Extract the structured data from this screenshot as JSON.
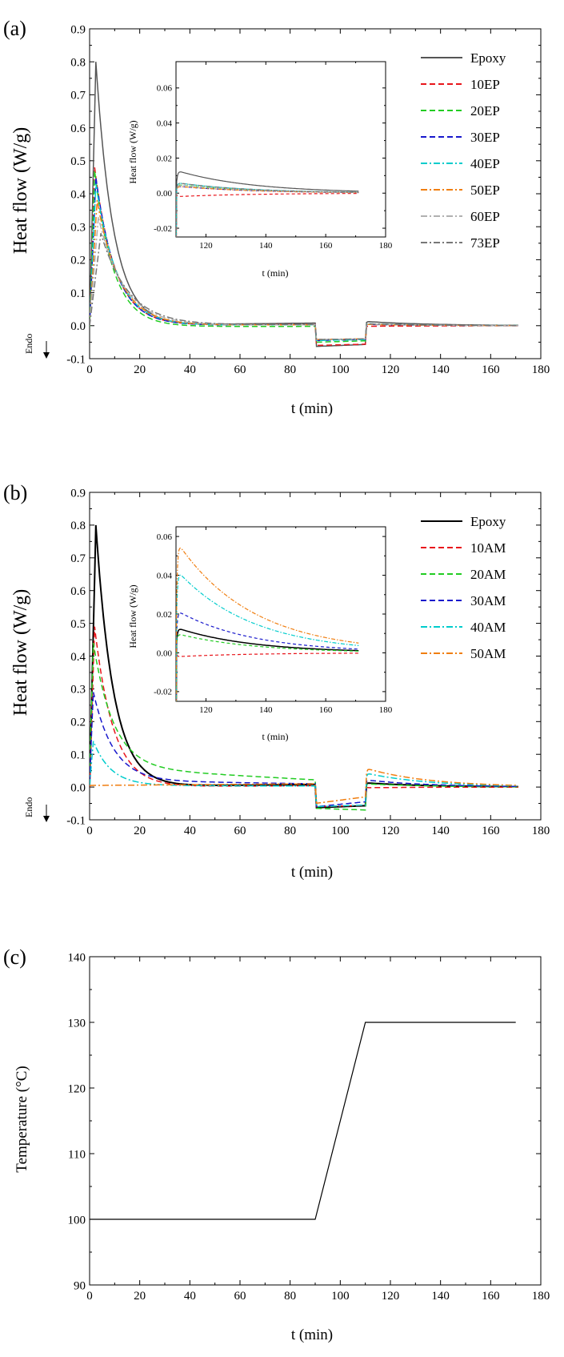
{
  "panels": [
    {
      "label": "(a)",
      "xlabel": "t (min)",
      "ylabel": "Heat flow (W/g)",
      "endo_label": "Endo",
      "inset": {
        "xlabel": "t (min)",
        "ylabel": "Heat flow (W/g)"
      }
    },
    {
      "label": "(b)",
      "xlabel": "t (min)",
      "ylabel": "Heat flow (W/g)",
      "endo_label": "Endo",
      "inset": {
        "xlabel": "t (min)",
        "ylabel": "Heat flow (W/g)"
      }
    },
    {
      "label": "(c)",
      "xlabel": "t (min)",
      "ylabel": "Temperature (°C)"
    }
  ],
  "chart_data": [
    {
      "type": "line",
      "panel": "(a)",
      "xlabel": "t (min)",
      "ylabel": "Heat flow (W/g)",
      "xlim": [
        0,
        180
      ],
      "ylim": [
        -0.1,
        0.9
      ],
      "x_ticks": [
        "0",
        "20",
        "40",
        "60",
        "80",
        "100",
        "120",
        "140",
        "160",
        "180"
      ],
      "y_ticks": [
        "-0.1",
        "0.0",
        "0.1",
        "0.2",
        "0.3",
        "0.4",
        "0.5",
        "0.6",
        "0.7",
        "0.8",
        "0.9"
      ],
      "legend_position": "top-right",
      "series": [
        {
          "name": "Epoxy",
          "color": "#555555",
          "dash": "solid",
          "peak": 0.8,
          "peak_t": 2.5,
          "decay": 7.0,
          "tail": 0.004,
          "iso1_start": 0.0,
          "iso1_end": 0.008,
          "step1": -0.063,
          "step2": -0.057,
          "ramp": 0.013
        },
        {
          "name": "10EP",
          "color": "#e8151b",
          "dash": "dash",
          "peak": 0.48,
          "peak_t": 2.0,
          "decay": 8.0,
          "tail": 0.003,
          "iso1_start": 0.0,
          "iso1_end": 0.004,
          "step1": -0.06,
          "step2": -0.056,
          "ramp": -0.002
        },
        {
          "name": "20EP",
          "color": "#22cc22",
          "dash": "dash",
          "peak": 0.47,
          "peak_t": 2.0,
          "decay": 7.5,
          "tail": 0.003,
          "iso1_start": -0.003,
          "iso1_end": -0.002,
          "step1": -0.05,
          "step2": -0.046,
          "ramp": 0.005
        },
        {
          "name": "30EP",
          "color": "#1818cc",
          "dash": "dash",
          "peak": 0.45,
          "peak_t": 2.5,
          "decay": 8.0,
          "tail": 0.003,
          "iso1_start": 0.0,
          "iso1_end": 0.003,
          "step1": -0.045,
          "step2": -0.042,
          "ramp": 0.004
        },
        {
          "name": "40EP",
          "color": "#00cccc",
          "dash": "dashdot",
          "peak": 0.43,
          "peak_t": 2.5,
          "decay": 8.5,
          "tail": 0.003,
          "iso1_start": 0.0,
          "iso1_end": 0.003,
          "step1": -0.045,
          "step2": -0.042,
          "ramp": 0.006
        },
        {
          "name": "50EP",
          "color": "#f07e10",
          "dash": "dashdot",
          "peak": 0.38,
          "peak_t": 3.0,
          "decay": 9.0,
          "tail": 0.003,
          "iso1_start": 0.0,
          "iso1_end": 0.003,
          "step1": -0.042,
          "step2": -0.04,
          "ramp": 0.004
        },
        {
          "name": "60EP",
          "color": "#b0b0b0",
          "dash": "dashdot",
          "peak": 0.33,
          "peak_t": 3.5,
          "decay": 10.0,
          "tail": 0.003,
          "iso1_start": 0.0,
          "iso1_end": 0.003,
          "step1": -0.042,
          "step2": -0.04,
          "ramp": 0.005
        },
        {
          "name": "73EP",
          "color": "#777777",
          "dash": "dashdot",
          "peak": 0.28,
          "peak_t": 4.5,
          "decay": 11.0,
          "tail": 0.003,
          "iso1_start": 0.0,
          "iso1_end": 0.004,
          "step1": -0.042,
          "step2": -0.04,
          "ramp": 0.006
        }
      ],
      "inset": {
        "xlabel": "t (min)",
        "ylabel": "Heat flow (W/g)",
        "xlim": [
          110,
          180
        ],
        "ylim": [
          -0.025,
          0.075
        ],
        "x_ticks": [
          "120",
          "140",
          "160",
          "180"
        ],
        "y_ticks": [
          "-0.02",
          "0.00",
          "0.02",
          "0.04",
          "0.06"
        ]
      }
    },
    {
      "type": "line",
      "panel": "(b)",
      "xlabel": "t (min)",
      "ylabel": "Heat flow (W/g)",
      "xlim": [
        0,
        180
      ],
      "ylim": [
        -0.1,
        0.9
      ],
      "x_ticks": [
        "0",
        "20",
        "40",
        "60",
        "80",
        "100",
        "120",
        "140",
        "160",
        "180"
      ],
      "y_ticks": [
        "-0.1",
        "0.0",
        "0.1",
        "0.2",
        "0.3",
        "0.4",
        "0.5",
        "0.6",
        "0.7",
        "0.8",
        "0.9"
      ],
      "legend_position": "top-right",
      "series": [
        {
          "name": "Epoxy",
          "color": "#000000",
          "dash": "solid",
          "width": 2,
          "peak": 0.8,
          "peak_t": 2.5,
          "decay": 7.0,
          "tail": 0.004,
          "iso1_start": 0.0,
          "iso1_end": 0.008,
          "step1": -0.063,
          "step2": -0.057,
          "ramp": 0.013
        },
        {
          "name": "10AM",
          "color": "#e8151b",
          "dash": "dash",
          "peak": 0.49,
          "peak_t": 2.0,
          "decay": 7.5,
          "tail": 0.004,
          "iso1_start": 0.0,
          "iso1_end": 0.004,
          "step1": -0.06,
          "step2": -0.056,
          "ramp": -0.002
        },
        {
          "name": "20AM",
          "color": "#22cc22",
          "dash": "dash",
          "peak": 0.44,
          "peak_t": 1.5,
          "decay": 8.0,
          "tail": 0.06,
          "iso1_start": 0.06,
          "iso1_end": 0.022,
          "step1": -0.065,
          "step2": -0.07,
          "ramp": 0.01
        },
        {
          "name": "30AM",
          "color": "#1818cc",
          "dash": "dash",
          "peak": 0.29,
          "peak_t": 1.5,
          "decay": 8.0,
          "tail": 0.02,
          "iso1_start": 0.02,
          "iso1_end": 0.01,
          "step1": -0.06,
          "step2": -0.045,
          "ramp": 0.022
        },
        {
          "name": "40AM",
          "color": "#00cccc",
          "dash": "dashdot",
          "peak": 0.14,
          "peak_t": 1.5,
          "decay": 7.0,
          "tail": 0.005,
          "iso1_start": 0.005,
          "iso1_end": 0.003,
          "step1": -0.06,
          "step2": -0.055,
          "ramp": 0.043
        },
        {
          "name": "50AM",
          "color": "#f07e10",
          "dash": "dashdot",
          "peak": 0.005,
          "peak_t": 0.0,
          "decay": 5.0,
          "tail": 0.005,
          "iso1_start": 0.005,
          "iso1_end": 0.01,
          "step1": -0.05,
          "step2": -0.03,
          "ramp": 0.058
        }
      ],
      "inset": {
        "xlabel": "t (min)",
        "ylabel": "Heat flow (W/g)",
        "xlim": [
          110,
          180
        ],
        "ylim": [
          -0.025,
          0.065
        ],
        "x_ticks": [
          "120",
          "140",
          "160",
          "180"
        ],
        "y_ticks": [
          "-0.02",
          "0.00",
          "0.02",
          "0.04",
          "0.06"
        ]
      }
    },
    {
      "type": "line",
      "panel": "(c)",
      "xlabel": "t (min)",
      "ylabel": "Temperature (°C)",
      "xlim": [
        0,
        180
      ],
      "ylim": [
        90,
        140
      ],
      "x_ticks": [
        "0",
        "20",
        "40",
        "60",
        "80",
        "100",
        "120",
        "140",
        "160",
        "180"
      ],
      "y_ticks": [
        "90",
        "100",
        "110",
        "120",
        "130",
        "140"
      ],
      "series": [
        {
          "color": "#000000",
          "x": [
            0,
            90,
            110,
            170
          ],
          "y": [
            100,
            100,
            130,
            130
          ]
        }
      ]
    }
  ]
}
